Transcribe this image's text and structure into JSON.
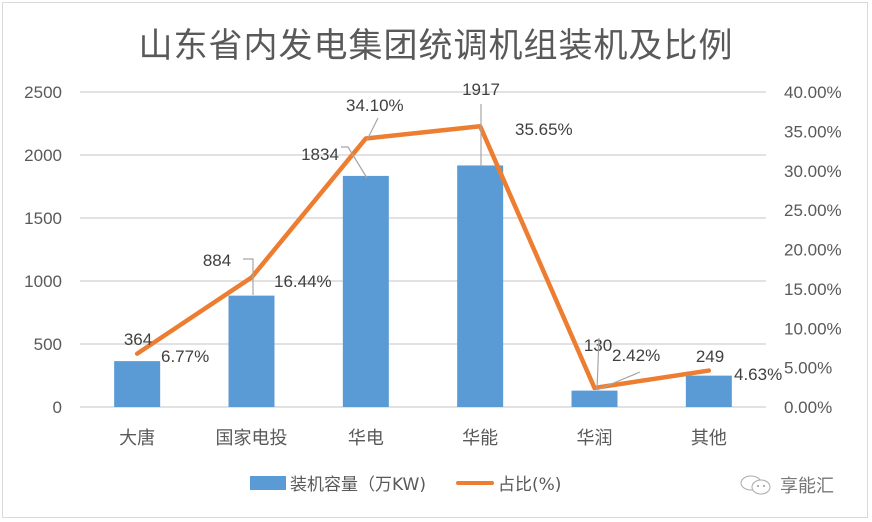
{
  "chart_data": {
    "type": "bar+line",
    "title": "山东省内发电集团统调机组装机及比例",
    "categories": [
      "大唐",
      "国家电投",
      "华电",
      "华能",
      "华润",
      "其他"
    ],
    "series": [
      {
        "name": "装机容量（万KW)",
        "type": "bar",
        "axis": "left",
        "color": "#5b9bd5",
        "values": [
          364,
          884,
          1834,
          1917,
          130,
          249
        ],
        "labels": [
          "364",
          "884",
          "1834",
          "1917",
          "130",
          "249"
        ]
      },
      {
        "name": "占比(%)",
        "type": "line",
        "axis": "right",
        "color": "#ed7d31",
        "values": [
          6.77,
          16.44,
          34.1,
          35.65,
          2.42,
          4.63
        ],
        "labels": [
          "6.77%",
          "16.44%",
          "34.10%",
          "35.65%",
          "2.42%",
          "4.63%"
        ]
      }
    ],
    "left_axis": {
      "ylim": [
        0,
        2500
      ],
      "ticks": [
        "0",
        "500",
        "1000",
        "1500",
        "2000",
        "2500"
      ]
    },
    "right_axis": {
      "ylim": [
        0,
        40
      ],
      "ticks": [
        "0.00%",
        "5.00%",
        "10.00%",
        "15.00%",
        "20.00%",
        "25.00%",
        "30.00%",
        "35.00%",
        "40.00%"
      ]
    },
    "xlabel": "",
    "ylabel": "",
    "grid": true,
    "legend_position": "bottom"
  },
  "legend": {
    "bar_label": "装机容量（万KW)",
    "line_label": "占比(%)"
  },
  "watermark": {
    "text": "享能汇"
  }
}
